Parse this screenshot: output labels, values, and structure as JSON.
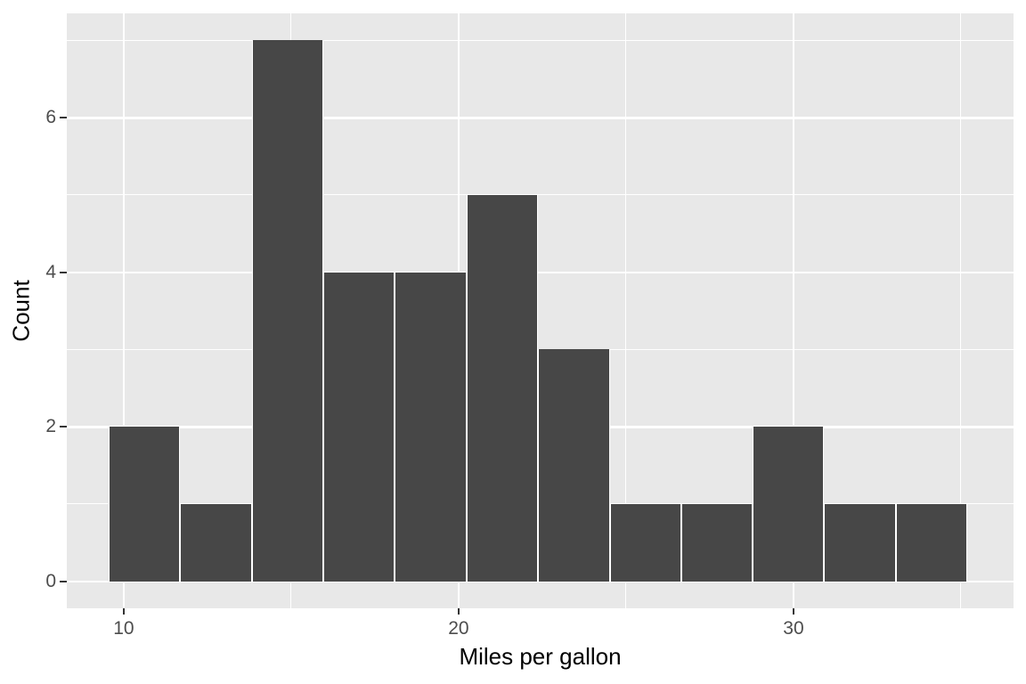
{
  "chart_data": {
    "type": "bar",
    "subtype": "histogram",
    "title": "",
    "xlabel": "Miles per gallon",
    "ylabel": "Count",
    "bin_edges": [
      9.55,
      11.69,
      13.82,
      15.96,
      18.1,
      20.23,
      22.37,
      24.51,
      26.64,
      28.78,
      30.91,
      33.05,
      35.19
    ],
    "counts": [
      2,
      1,
      7,
      4,
      4,
      5,
      3,
      1,
      1,
      2,
      1,
      1
    ],
    "x_major_ticks": [
      10,
      20,
      30
    ],
    "x_minor_ticks": [
      15,
      25,
      35
    ],
    "y_major_ticks": [
      0,
      2,
      4,
      6
    ],
    "y_minor_ticks": [
      1,
      3,
      5,
      7
    ],
    "xlim": [
      8.3,
      36.57
    ],
    "ylim": [
      -0.35,
      7.35
    ],
    "grid": true,
    "legend": false,
    "colors": {
      "bar_fill": "#474747",
      "panel_background": "#E8E8E8",
      "gridline": "#FFFFFF",
      "tick_mark": "#333333",
      "tick_label": "#4D4D4D",
      "axis_title": "#000000",
      "figure_background": "#FFFFFF"
    }
  }
}
